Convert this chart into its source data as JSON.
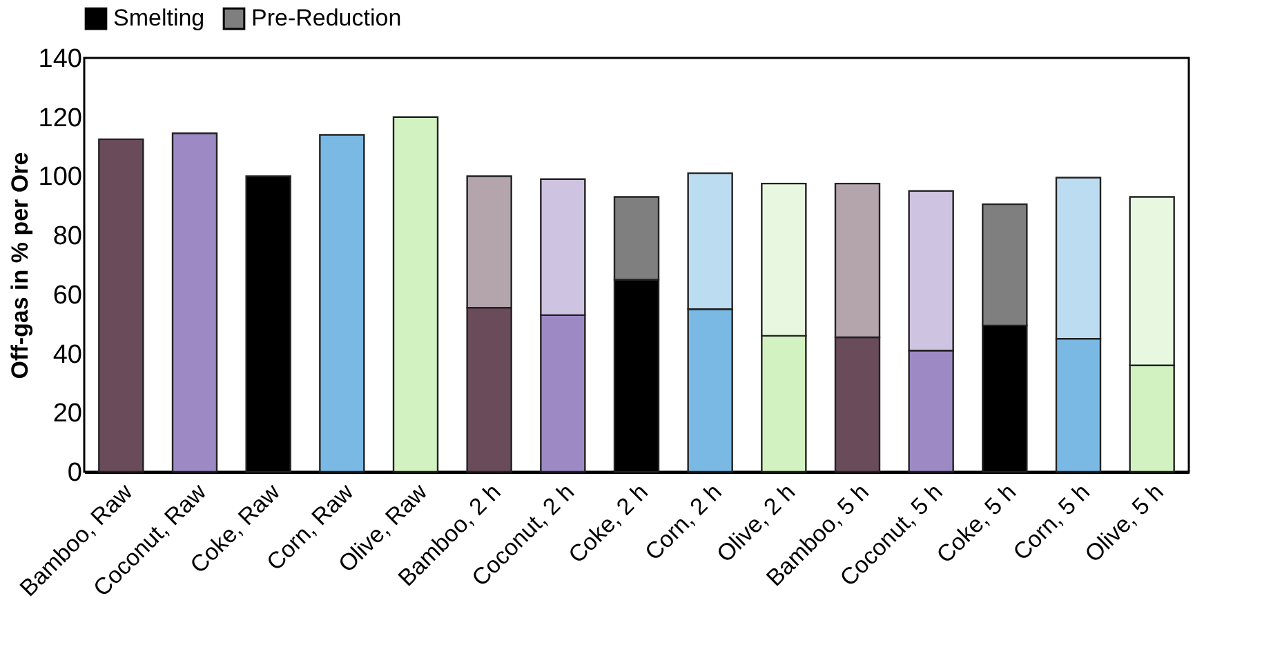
{
  "chart_data": {
    "type": "bar",
    "stacked": true,
    "ylabel": "Off-gas in % per Ore",
    "categories": [
      "Bamboo, Raw",
      "Coconut, Raw",
      "Coke, Raw",
      "Corn, Raw",
      "Olive, Raw",
      "Bamboo, 2 h",
      "Coconut, 2 h",
      "Coke, 2 h",
      "Corn, 2 h",
      "Olive, 2 h",
      "Bamboo, 5 h",
      "Coconut, 5 h",
      "Coke, 5 h",
      "Corn, 5 h",
      "Olive, 5 h"
    ],
    "series": [
      {
        "name": "Smelting",
        "color": "#000000",
        "colors": [
          "#694b5a",
          "#9d8ac4",
          "#000000",
          "#7ab9e3",
          "#d2f2c1",
          "#694b5a",
          "#9d8ac4",
          "#000000",
          "#7ab9e3",
          "#d2f2c1",
          "#694b5a",
          "#9d8ac4",
          "#000000",
          "#7ab9e3",
          "#d2f2c1"
        ],
        "values": [
          112.5,
          114.5,
          100,
          114,
          120,
          55.5,
          53,
          65,
          55,
          46,
          45.5,
          41,
          49.5,
          45,
          36
        ]
      },
      {
        "name": "Pre-Reduction",
        "color": "#7f7f7f",
        "colors": [
          "#b4a5ac",
          "#cec4e1",
          "#7f7f7f",
          "#bcdcf1",
          "#e8f8e0",
          "#b4a5ac",
          "#cec4e1",
          "#7f7f7f",
          "#bcdcf1",
          "#e8f8e0",
          "#b4a5ac",
          "#cec4e1",
          "#7f7f7f",
          "#bcdcf1",
          "#e8f8e0"
        ],
        "values": [
          null,
          null,
          null,
          null,
          null,
          44.5,
          46,
          28,
          46,
          51.5,
          52,
          54,
          41,
          54.5,
          57
        ]
      }
    ],
    "ylim": [
      0,
      140
    ],
    "yticks": [
      0,
      20,
      40,
      60,
      80,
      100,
      120,
      140
    ],
    "grid": false,
    "legend": "top"
  }
}
